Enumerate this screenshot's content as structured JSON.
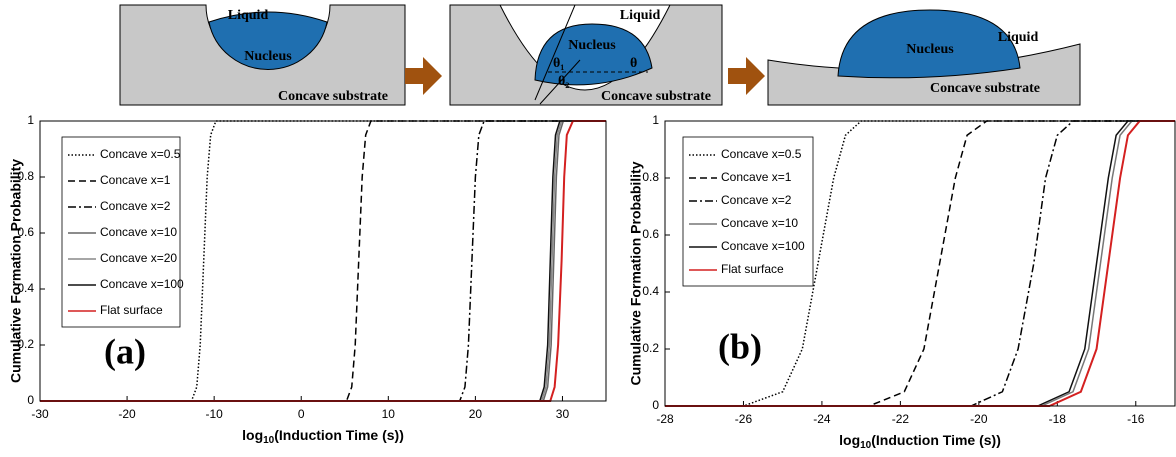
{
  "diagram": {
    "panels": [
      {
        "liquid": "Liquid",
        "nucleus": "Nucleus",
        "substrate": "Concave substrate"
      },
      {
        "liquid": "Liquid",
        "nucleus": "Nucleus",
        "substrate": "Concave substrate",
        "angles": [
          "θ₁",
          "θ₂",
          "θ"
        ]
      },
      {
        "liquid": "Liquid",
        "nucleus": "Nucleus",
        "substrate": "Concave substrate"
      }
    ]
  },
  "chart_data": [
    {
      "type": "line",
      "panel_label": "(a)",
      "y_label": "Cumulative Formation Probability",
      "x_label": [
        "log",
        "10",
        "(Induction Time (s))"
      ],
      "xlim": [
        -30,
        35
      ],
      "ylim": [
        0,
        1
      ],
      "xticks": [
        -30,
        -20,
        -10,
        0,
        10,
        20,
        30
      ],
      "yticks": [
        0,
        0.2,
        0.4,
        0.6,
        0.8,
        1
      ],
      "series": [
        {
          "name": "Concave x=0.5",
          "color": "#000000",
          "line_style": "dotted",
          "x": [
            -30,
            -12.6,
            -12,
            -11.6,
            -11.2,
            -10.8,
            -10.4,
            -9.8,
            35
          ],
          "values": [
            0,
            0,
            0.05,
            0.2,
            0.5,
            0.8,
            0.95,
            1,
            1
          ]
        },
        {
          "name": "Concave x=1",
          "color": "#000000",
          "line_style": "dashed",
          "x": [
            -30,
            5.2,
            5.8,
            6.2,
            6.6,
            7.0,
            7.4,
            8,
            35
          ],
          "values": [
            0,
            0,
            0.05,
            0.2,
            0.5,
            0.8,
            0.95,
            1,
            1
          ]
        },
        {
          "name": "Concave x=2",
          "color": "#000000",
          "line_style": "dashdot",
          "x": [
            -30,
            18.2,
            18.8,
            19.2,
            19.6,
            20,
            20.4,
            21,
            35
          ],
          "values": [
            0,
            0,
            0.05,
            0.2,
            0.5,
            0.8,
            0.95,
            1,
            1
          ]
        },
        {
          "name": "Concave x=10",
          "color": "#666666",
          "line_style": "solid",
          "x": [
            -30,
            27.8,
            28.3,
            28.7,
            29.0,
            29.3,
            29.6,
            30.1,
            35
          ],
          "values": [
            0,
            0,
            0.05,
            0.2,
            0.5,
            0.8,
            0.95,
            1,
            1
          ]
        },
        {
          "name": "Concave x=20",
          "color": "#888888",
          "line_style": "solid",
          "x": [
            -30,
            27.6,
            28.1,
            28.5,
            28.8,
            29.1,
            29.4,
            29.9,
            35
          ],
          "values": [
            0,
            0,
            0.05,
            0.2,
            0.5,
            0.8,
            0.95,
            1,
            1
          ]
        },
        {
          "name": "Concave x=100",
          "color": "#111111",
          "line_style": "solid",
          "x": [
            -30,
            27.4,
            27.9,
            28.3,
            28.6,
            28.9,
            29.2,
            29.7,
            35
          ],
          "values": [
            0,
            0,
            0.05,
            0.2,
            0.5,
            0.8,
            0.95,
            1,
            1
          ]
        },
        {
          "name": "Flat surface",
          "color": "#d42020",
          "line_style": "solid",
          "x": [
            -30,
            28.6,
            29.1,
            29.5,
            29.9,
            30.2,
            30.5,
            31.2,
            35
          ],
          "values": [
            0,
            0,
            0.05,
            0.2,
            0.5,
            0.8,
            0.95,
            1,
            1
          ]
        }
      ]
    },
    {
      "type": "line",
      "panel_label": "(b)",
      "y_label": "Cumulative Formation Probability",
      "x_label": [
        "log",
        "10",
        "(Induction Time (s))"
      ],
      "xlim": [
        -28,
        -15
      ],
      "ylim": [
        0,
        1
      ],
      "xticks": [
        -28,
        -26,
        -24,
        -22,
        -20,
        -18,
        -16
      ],
      "yticks": [
        0,
        0.2,
        0.4,
        0.6,
        0.8,
        1
      ],
      "series": [
        {
          "name": "Concave x=0.5",
          "color": "#000000",
          "line_style": "dotted",
          "x": [
            -28,
            -26,
            -25,
            -24.5,
            -24.1,
            -23.7,
            -23.4,
            -23,
            -15
          ],
          "values": [
            0,
            0,
            0.05,
            0.2,
            0.5,
            0.8,
            0.95,
            1,
            1
          ]
        },
        {
          "name": "Concave x=1",
          "color": "#000000",
          "line_style": "dashed",
          "x": [
            -28,
            -22.8,
            -21.9,
            -21.4,
            -21,
            -20.6,
            -20.3,
            -19.8,
            -15
          ],
          "values": [
            0,
            0,
            0.05,
            0.2,
            0.5,
            0.8,
            0.95,
            1,
            1
          ]
        },
        {
          "name": "Concave x=2",
          "color": "#000000",
          "line_style": "dashdot",
          "x": [
            -28,
            -20.2,
            -19.4,
            -19,
            -18.6,
            -18.3,
            -18,
            -17.6,
            -15
          ],
          "values": [
            0,
            0,
            0.05,
            0.2,
            0.5,
            0.8,
            0.95,
            1,
            1
          ]
        },
        {
          "name": "Concave x=10",
          "color": "#777777",
          "line_style": "solid",
          "x": [
            -28,
            -18.4,
            -17.6,
            -17.2,
            -16.9,
            -16.6,
            -16.4,
            -16.1,
            -15
          ],
          "values": [
            0,
            0,
            0.05,
            0.2,
            0.5,
            0.8,
            0.95,
            1,
            1
          ]
        },
        {
          "name": "Concave x=100",
          "color": "#111111",
          "line_style": "solid",
          "x": [
            -28,
            -18.5,
            -17.7,
            -17.3,
            -17,
            -16.7,
            -16.5,
            -16.2,
            -15
          ],
          "values": [
            0,
            0,
            0.05,
            0.2,
            0.5,
            0.8,
            0.95,
            1,
            1
          ]
        },
        {
          "name": "Flat surface",
          "color": "#d42020",
          "line_style": "solid",
          "x": [
            -28,
            -18.2,
            -17.4,
            -17,
            -16.7,
            -16.4,
            -16.2,
            -15.9,
            -15
          ],
          "values": [
            0,
            0,
            0.05,
            0.2,
            0.5,
            0.8,
            0.95,
            1,
            1
          ]
        }
      ]
    }
  ]
}
